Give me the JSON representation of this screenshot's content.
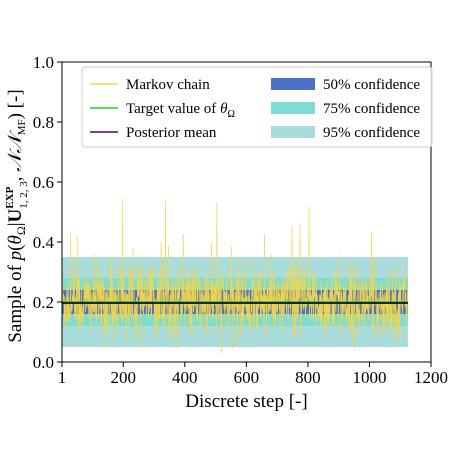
{
  "chart_data": {
    "type": "line",
    "xlabel": "Discrete step [-]",
    "ylabel": "Sample of p(θ_Ω | U^EXP_{1,2,3}, 𝒩𝒩_MF) [-]",
    "ylabel_parts": {
      "prefix": "Sample of ",
      "p": "p",
      "theta": "θ",
      "omega": "Ω",
      "U": "U",
      "sup": "EXP",
      "sub": "1, 2, 3",
      "NN": "𝒩𝒩",
      "mf": "MF",
      "unit": "[-]"
    },
    "xlim": [
      1,
      1200
    ],
    "ylim": [
      0.0,
      1.0
    ],
    "xticks": [
      1,
      200,
      400,
      600,
      800,
      1000,
      1200
    ],
    "xtick_labels": [
      "1",
      "200",
      "400",
      "600",
      "800",
      "1000",
      "1200"
    ],
    "yticks": [
      0.0,
      0.2,
      0.4,
      0.6,
      0.8,
      1.0
    ],
    "ytick_labels": [
      "0.0",
      "0.2",
      "0.4",
      "0.6",
      "0.8",
      "1.0"
    ],
    "grid": false,
    "legend_position": "top",
    "n_steps": 1125,
    "series": [
      {
        "name": "Markov chain",
        "color": "#f2d64b",
        "mean": 0.2,
        "spread": 0.06,
        "min": 0.0,
        "max": 0.56
      },
      {
        "name": "Target value of θΩ",
        "color": "#22cc22",
        "value": 0.2
      },
      {
        "name": "Posterior mean",
        "color": "#4b0082",
        "value": 0.2
      }
    ],
    "confidence_bands": [
      {
        "name": "95% confidence",
        "lower": 0.05,
        "upper": 0.35,
        "color": "#a9dcdc"
      },
      {
        "name": "75% confidence",
        "lower": 0.12,
        "upper": 0.28,
        "color": "#7fdcd4"
      },
      {
        "name": "50% confidence",
        "lower": 0.16,
        "upper": 0.24,
        "color": "#4a72c6"
      }
    ],
    "legend": [
      {
        "label": "Markov chain",
        "kind": "line",
        "color": "#f2d64b"
      },
      {
        "label_prefix": "Target value of ",
        "theta": "θ",
        "omega": "Ω",
        "kind": "line",
        "color": "#22cc22"
      },
      {
        "label": "Posterior mean",
        "kind": "line",
        "color": "#4b0082"
      },
      {
        "label": "50% confidence",
        "kind": "patch",
        "color": "#4a72c6"
      },
      {
        "label": "75% confidence",
        "kind": "patch",
        "color": "#7fdcd4"
      },
      {
        "label": "95% confidence",
        "kind": "patch",
        "color": "#a9dcdc"
      }
    ]
  }
}
